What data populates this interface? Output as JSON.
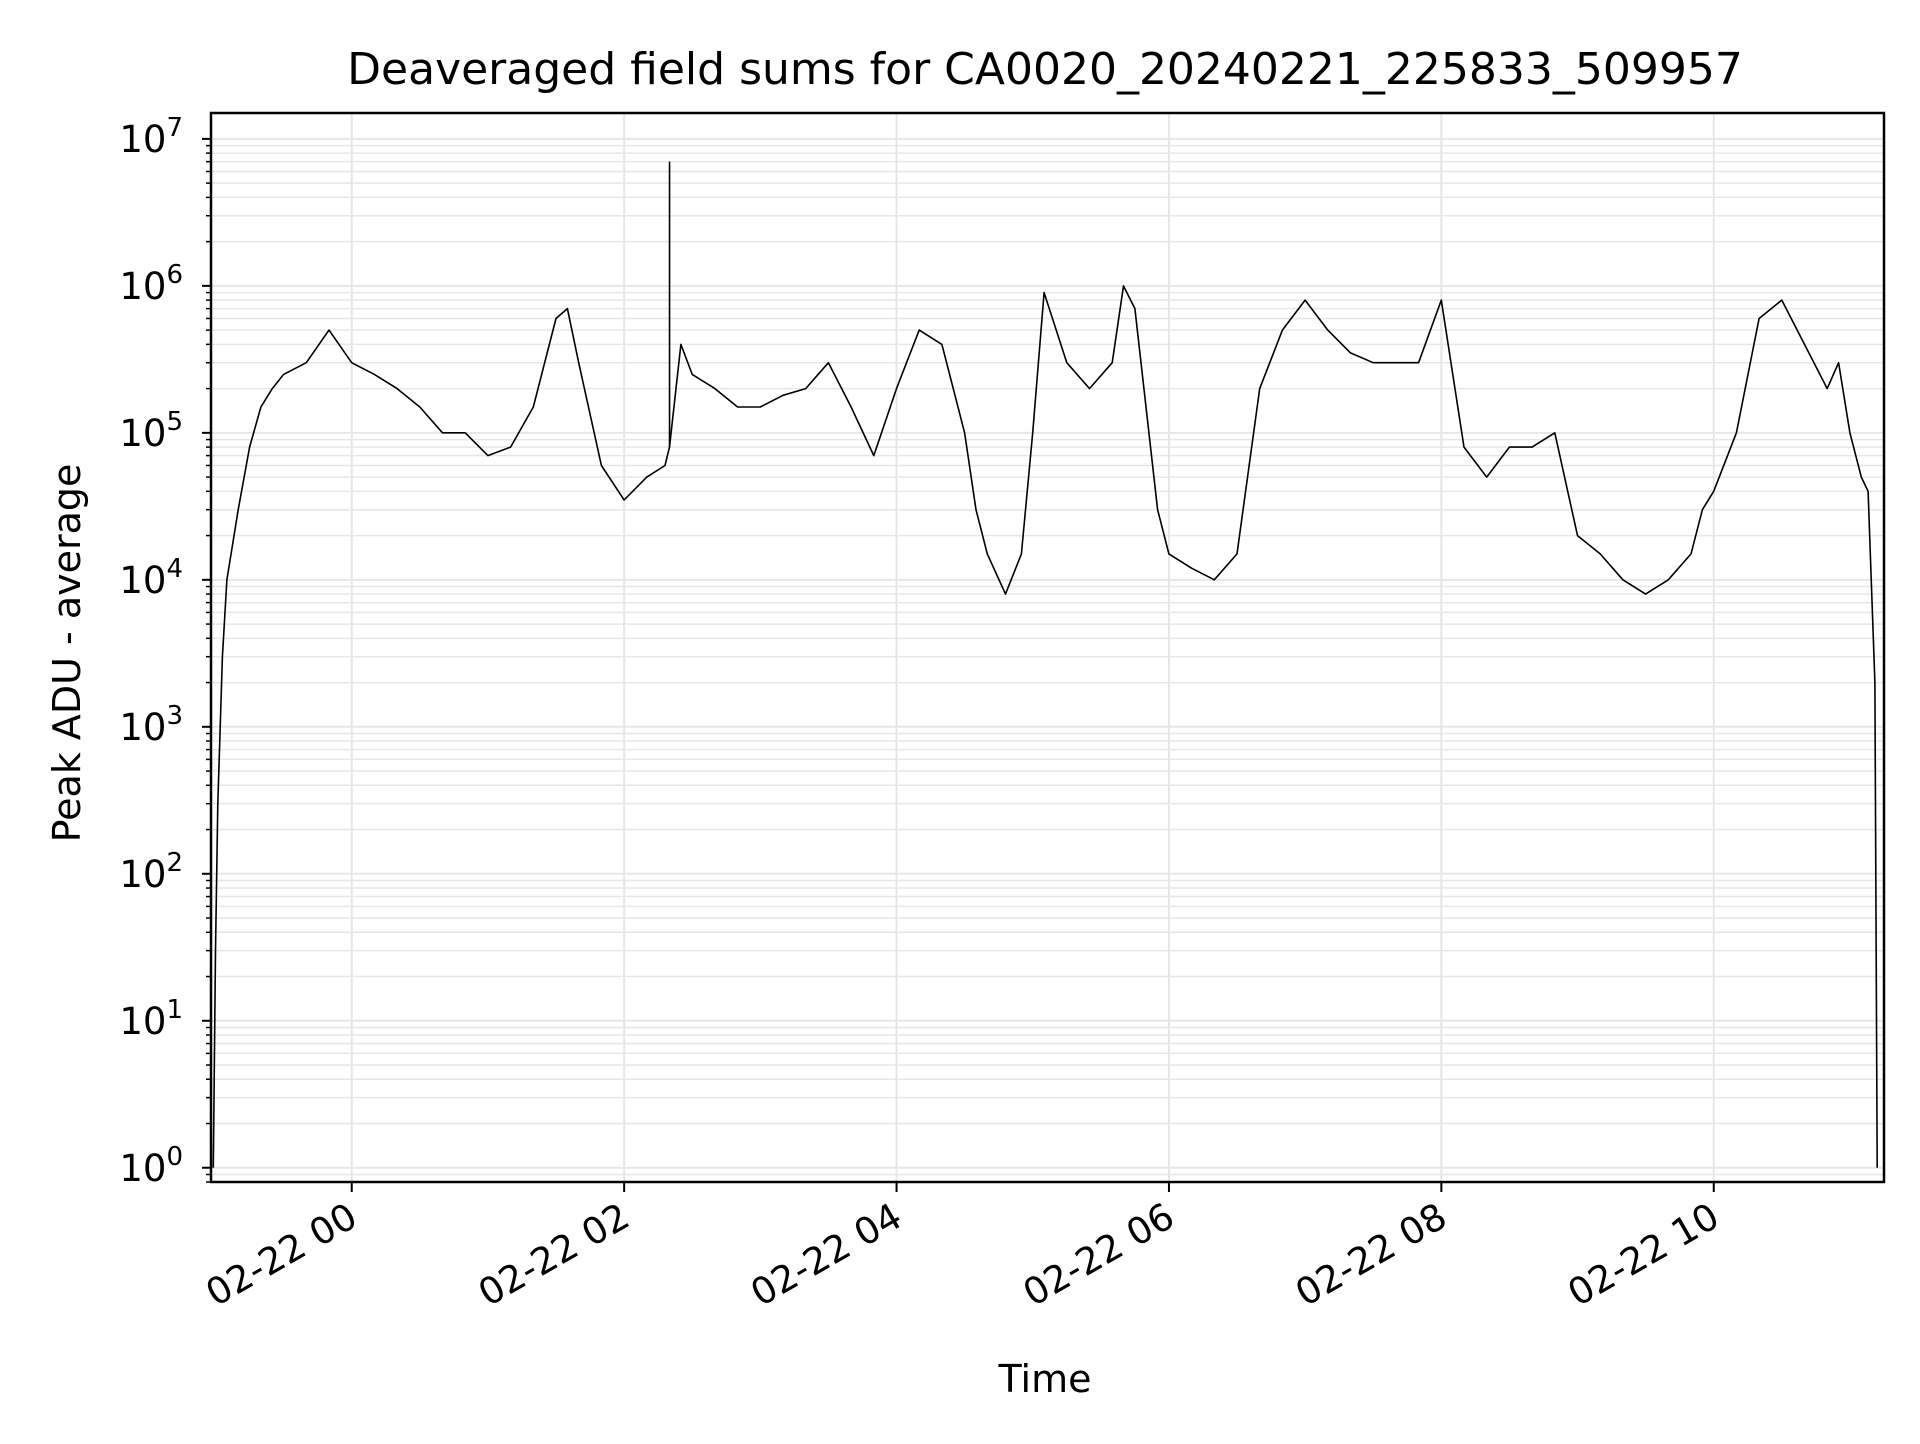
{
  "chart_data": {
    "type": "line",
    "title": "Deaveraged field sums for CA0020_20240221_225833_509957",
    "xlabel": "Time",
    "ylabel": "Peak ADU - average",
    "yscale": "log",
    "ylim": [
      0.8,
      15000000
    ],
    "xlim": [
      "2024-02-21 22:58",
      "2024-02-22 11:15"
    ],
    "grid": true,
    "legend": "none",
    "x_tick_labels": [
      "02-22 00",
      "02-22 02",
      "02-22 04",
      "02-22 06",
      "02-22 08",
      "02-22 10"
    ],
    "x_ticks": [
      "2024-02-22 00:00",
      "2024-02-22 02:00",
      "2024-02-22 04:00",
      "2024-02-22 06:00",
      "2024-02-22 08:00",
      "2024-02-22 10:00"
    ],
    "y_tick_exponents": [
      "0",
      "1",
      "2",
      "3",
      "4",
      "5",
      "6",
      "7"
    ],
    "y_tick_values": [
      1,
      10,
      100,
      1000,
      10000,
      100000,
      1000000,
      10000000
    ],
    "line_color": "#000000",
    "grid_color": "#e6e6e6",
    "series": [
      {
        "x": [
          "2024-02-21 22:59",
          "2024-02-21 23:00",
          "2024-02-21 23:01",
          "2024-02-21 23:03",
          "2024-02-21 23:05",
          "2024-02-21 23:10",
          "2024-02-21 23:15",
          "2024-02-21 23:20",
          "2024-02-21 23:25",
          "2024-02-21 23:30",
          "2024-02-21 23:40",
          "2024-02-21 23:50",
          "2024-02-22 00:00",
          "2024-02-22 00:10",
          "2024-02-22 00:20",
          "2024-02-22 00:30",
          "2024-02-22 00:40",
          "2024-02-22 00:50",
          "2024-02-22 01:00",
          "2024-02-22 01:10",
          "2024-02-22 01:20",
          "2024-02-22 01:30",
          "2024-02-22 01:35",
          "2024-02-22 01:40",
          "2024-02-22 01:50",
          "2024-02-22 02:00",
          "2024-02-22 02:10",
          "2024-02-22 02:18",
          "2024-02-22 02:20",
          "2024-02-22 02:25",
          "2024-02-22 02:30",
          "2024-02-22 02:40",
          "2024-02-22 02:50",
          "2024-02-22 03:00",
          "2024-02-22 03:10",
          "2024-02-22 03:20",
          "2024-02-22 03:30",
          "2024-02-22 03:40",
          "2024-02-22 03:50",
          "2024-02-22 04:00",
          "2024-02-22 04:10",
          "2024-02-22 04:20",
          "2024-02-22 04:30",
          "2024-02-22 04:35",
          "2024-02-22 04:40",
          "2024-02-22 04:48",
          "2024-02-22 04:55",
          "2024-02-22 05:00",
          "2024-02-22 05:05",
          "2024-02-22 05:15",
          "2024-02-22 05:25",
          "2024-02-22 05:35",
          "2024-02-22 05:40",
          "2024-02-22 05:45",
          "2024-02-22 05:55",
          "2024-02-22 06:00",
          "2024-02-22 06:10",
          "2024-02-22 06:20",
          "2024-02-22 06:30",
          "2024-02-22 06:40",
          "2024-02-22 06:50",
          "2024-02-22 07:00",
          "2024-02-22 07:10",
          "2024-02-22 07:20",
          "2024-02-22 07:30",
          "2024-02-22 07:40",
          "2024-02-22 07:50",
          "2024-02-22 08:00",
          "2024-02-22 08:10",
          "2024-02-22 08:20",
          "2024-02-22 08:30",
          "2024-02-22 08:40",
          "2024-02-22 08:50",
          "2024-02-22 09:00",
          "2024-02-22 09:10",
          "2024-02-22 09:20",
          "2024-02-22 09:30",
          "2024-02-22 09:40",
          "2024-02-22 09:50",
          "2024-02-22 09:55",
          "2024-02-22 10:00",
          "2024-02-22 10:10",
          "2024-02-22 10:20",
          "2024-02-22 10:30",
          "2024-02-22 10:40",
          "2024-02-22 10:50",
          "2024-02-22 10:55",
          "2024-02-22 11:00",
          "2024-02-22 11:05",
          "2024-02-22 11:08",
          "2024-02-22 11:11",
          "2024-02-22 11:12"
        ],
        "values": [
          1,
          30,
          300,
          3000,
          10000,
          30000,
          80000,
          150000,
          200000,
          250000,
          300000,
          500000,
          300000,
          250000,
          200000,
          150000,
          100000,
          100000,
          70000,
          80000,
          150000,
          600000,
          700000,
          300000,
          60000,
          35000,
          50000,
          60000,
          80000,
          400000,
          250000,
          200000,
          150000,
          150000,
          180000,
          200000,
          300000,
          150000,
          70000,
          200000,
          500000,
          400000,
          100000,
          30000,
          15000,
          8000,
          15000,
          100000,
          900000,
          300000,
          200000,
          300000,
          1000000,
          700000,
          30000,
          15000,
          12000,
          10000,
          15000,
          200000,
          500000,
          800000,
          500000,
          350000,
          300000,
          300000,
          300000,
          800000,
          80000,
          50000,
          80000,
          80000,
          100000,
          20000,
          15000,
          10000,
          8000,
          10000,
          15000,
          30000,
          40000,
          100000,
          600000,
          800000,
          400000,
          200000,
          300000,
          100000,
          50000,
          40000,
          2000,
          1
        ]
      }
    ],
    "annotations": [
      {
        "x": "2024-02-22 02:20",
        "value": 7000000,
        "label": ""
      }
    ]
  }
}
